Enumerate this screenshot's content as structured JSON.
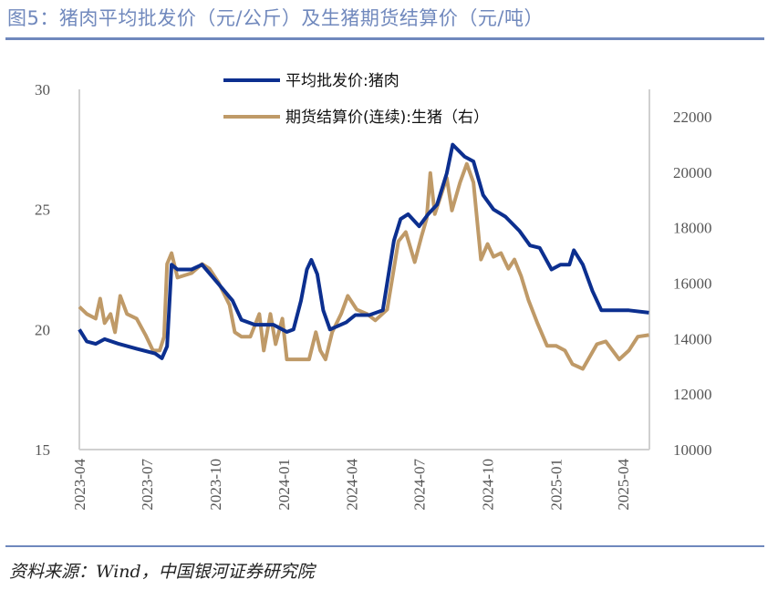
{
  "title": "图5：猪肉平均批发价（元/公斤）及生猪期货结算价（元/吨）",
  "source": "资料来源：Wind，中国银河证券研究院",
  "chart_data": {
    "type": "line",
    "title": "图5：猪肉平均批发价（元/公斤）及生猪期货结算价（元/吨）",
    "xlabel": "",
    "ylabel_left": "元/公斤",
    "ylabel_right": "元/吨",
    "xlim": [
      "2023-04-01",
      "2025-05-08"
    ],
    "ylim_left": [
      15,
      30
    ],
    "ylim_right": [
      10000,
      22000
    ],
    "x_ticks": [
      "2023-04",
      "2023-07",
      "2023-10",
      "2024-01",
      "2024-04",
      "2024-07",
      "2024-10",
      "2025-01",
      "2025-04"
    ],
    "y_ticks_left": [
      15,
      20,
      25,
      30
    ],
    "y_ticks_right": [
      10000,
      12000,
      14000,
      16000,
      18000,
      20000,
      22000
    ],
    "grid": false,
    "legend_position": "top-center",
    "series": [
      {
        "name": "平均批发价:猪肉",
        "axis": "left",
        "color": "#0c2f8f",
        "points": [
          [
            "2023-04-01",
            20.0
          ],
          [
            "2023-04-11",
            19.5
          ],
          [
            "2023-04-23",
            19.4
          ],
          [
            "2023-05-05",
            19.6
          ],
          [
            "2023-05-24",
            19.4
          ],
          [
            "2023-06-17",
            19.2
          ],
          [
            "2023-07-12",
            19.0
          ],
          [
            "2023-07-21",
            18.8
          ],
          [
            "2023-07-28",
            19.3
          ],
          [
            "2023-08-03",
            22.7
          ],
          [
            "2023-08-11",
            22.5
          ],
          [
            "2023-08-30",
            22.5
          ],
          [
            "2023-09-13",
            22.7
          ],
          [
            "2023-10-05",
            21.9
          ],
          [
            "2023-10-24",
            21.2
          ],
          [
            "2023-11-05",
            20.4
          ],
          [
            "2023-11-23",
            20.2
          ],
          [
            "2023-12-18",
            20.2
          ],
          [
            "2024-01-05",
            19.9
          ],
          [
            "2024-01-14",
            20.0
          ],
          [
            "2024-01-24",
            21.2
          ],
          [
            "2024-02-01",
            22.5
          ],
          [
            "2024-02-07",
            22.9
          ],
          [
            "2024-02-15",
            22.3
          ],
          [
            "2024-02-23",
            20.8
          ],
          [
            "2024-03-03",
            20.0
          ],
          [
            "2024-03-25",
            20.3
          ],
          [
            "2024-04-06",
            20.6
          ],
          [
            "2024-04-25",
            20.6
          ],
          [
            "2024-05-13",
            20.8
          ],
          [
            "2024-05-28",
            23.7
          ],
          [
            "2024-06-06",
            24.6
          ],
          [
            "2024-06-16",
            24.8
          ],
          [
            "2024-07-01",
            24.3
          ],
          [
            "2024-07-13",
            24.8
          ],
          [
            "2024-07-25",
            25.2
          ],
          [
            "2024-08-07",
            26.5
          ],
          [
            "2024-08-15",
            27.7
          ],
          [
            "2024-08-31",
            27.2
          ],
          [
            "2024-09-12",
            27.0
          ],
          [
            "2024-09-25",
            25.6
          ],
          [
            "2024-10-09",
            25.0
          ],
          [
            "2024-10-25",
            24.7
          ],
          [
            "2024-11-13",
            24.1
          ],
          [
            "2024-11-27",
            23.5
          ],
          [
            "2024-12-10",
            23.4
          ],
          [
            "2024-12-26",
            22.5
          ],
          [
            "2025-01-07",
            22.7
          ],
          [
            "2025-01-19",
            22.7
          ],
          [
            "2025-01-25",
            23.3
          ],
          [
            "2025-02-06",
            22.7
          ],
          [
            "2025-02-19",
            21.6
          ],
          [
            "2025-03-03",
            20.8
          ],
          [
            "2025-03-15",
            20.8
          ],
          [
            "2025-04-09",
            20.8
          ],
          [
            "2025-05-06",
            20.7
          ]
        ]
      },
      {
        "name": "期货结算价(连续):生猪（右）",
        "axis": "right",
        "color": "#bf9a68",
        "points": [
          [
            "2023-04-01",
            15150
          ],
          [
            "2023-04-11",
            14890
          ],
          [
            "2023-04-23",
            14720
          ],
          [
            "2023-04-29",
            15440
          ],
          [
            "2023-05-05",
            14560
          ],
          [
            "2023-05-13",
            14890
          ],
          [
            "2023-05-19",
            14230
          ],
          [
            "2023-05-26",
            15540
          ],
          [
            "2023-06-04",
            14890
          ],
          [
            "2023-06-17",
            14720
          ],
          [
            "2023-06-29",
            14130
          ],
          [
            "2023-07-09",
            13570
          ],
          [
            "2023-07-18",
            13570
          ],
          [
            "2023-07-24",
            14070
          ],
          [
            "2023-07-28",
            16690
          ],
          [
            "2023-08-03",
            17080
          ],
          [
            "2023-08-11",
            16200
          ],
          [
            "2023-08-30",
            16360
          ],
          [
            "2023-09-13",
            16690
          ],
          [
            "2023-09-23",
            16520
          ],
          [
            "2023-10-05",
            16030
          ],
          [
            "2023-10-20",
            15210
          ],
          [
            "2023-10-27",
            14230
          ],
          [
            "2023-11-05",
            14070
          ],
          [
            "2023-11-17",
            14070
          ],
          [
            "2023-11-29",
            14890
          ],
          [
            "2023-12-05",
            13570
          ],
          [
            "2023-12-14",
            14890
          ],
          [
            "2023-12-21",
            13800
          ],
          [
            "2023-12-30",
            14720
          ],
          [
            "2024-01-05",
            13250
          ],
          [
            "2024-01-21",
            13250
          ],
          [
            "2024-02-04",
            13250
          ],
          [
            "2024-02-13",
            14230
          ],
          [
            "2024-02-19",
            13570
          ],
          [
            "2024-02-26",
            13250
          ],
          [
            "2024-03-06",
            14230
          ],
          [
            "2024-03-18",
            14890
          ],
          [
            "2024-03-27",
            15540
          ],
          [
            "2024-04-08",
            15050
          ],
          [
            "2024-04-22",
            14890
          ],
          [
            "2024-05-03",
            14660
          ],
          [
            "2024-05-19",
            15050
          ],
          [
            "2024-06-03",
            17510
          ],
          [
            "2024-06-13",
            17840
          ],
          [
            "2024-06-25",
            16760
          ],
          [
            "2024-07-04",
            17670
          ],
          [
            "2024-07-11",
            18330
          ],
          [
            "2024-07-16",
            19970
          ],
          [
            "2024-07-22",
            18490
          ],
          [
            "2024-07-28",
            18980
          ],
          [
            "2024-08-07",
            19800
          ],
          [
            "2024-08-14",
            18620
          ],
          [
            "2024-08-25",
            19630
          ],
          [
            "2024-09-03",
            20300
          ],
          [
            "2024-09-12",
            19630
          ],
          [
            "2024-09-22",
            16850
          ],
          [
            "2024-10-01",
            17410
          ],
          [
            "2024-10-09",
            16950
          ],
          [
            "2024-10-19",
            17080
          ],
          [
            "2024-10-29",
            16520
          ],
          [
            "2024-11-06",
            16850
          ],
          [
            "2024-11-15",
            16260
          ],
          [
            "2024-11-25",
            15380
          ],
          [
            "2024-12-07",
            14560
          ],
          [
            "2024-12-20",
            13740
          ],
          [
            "2025-01-01",
            13740
          ],
          [
            "2025-01-13",
            13570
          ],
          [
            "2025-01-23",
            13080
          ],
          [
            "2025-02-06",
            12910
          ],
          [
            "2025-02-25",
            13800
          ],
          [
            "2025-03-09",
            13900
          ],
          [
            "2025-03-27",
            13250
          ],
          [
            "2025-04-09",
            13570
          ],
          [
            "2025-04-21",
            14070
          ],
          [
            "2025-05-06",
            14130
          ]
        ]
      }
    ]
  }
}
